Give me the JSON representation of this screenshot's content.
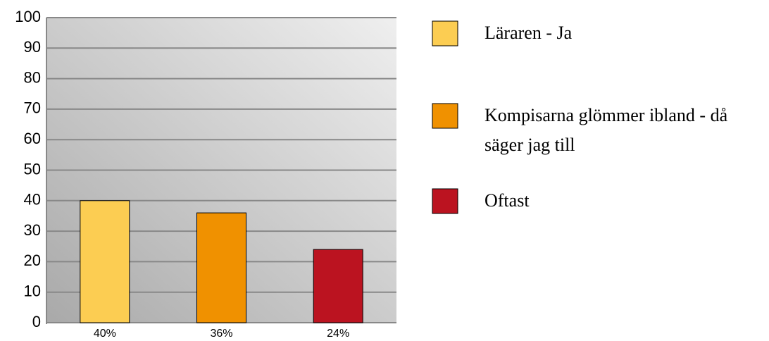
{
  "chart_data": {
    "type": "bar",
    "categories": [
      "Läraren - Ja",
      "Kompisarna glömmer ibland - då säger jag till",
      "Oftast"
    ],
    "values": [
      40,
      36,
      24
    ],
    "value_labels": [
      "40%",
      "36%",
      "24%"
    ],
    "colors": [
      "#fccd52",
      "#f09100",
      "#bb1320"
    ],
    "ylim": [
      0,
      100
    ],
    "yticks": [
      0,
      10,
      20,
      30,
      40,
      50,
      60,
      70,
      80,
      90,
      100
    ],
    "grid": true,
    "legend": "right"
  }
}
